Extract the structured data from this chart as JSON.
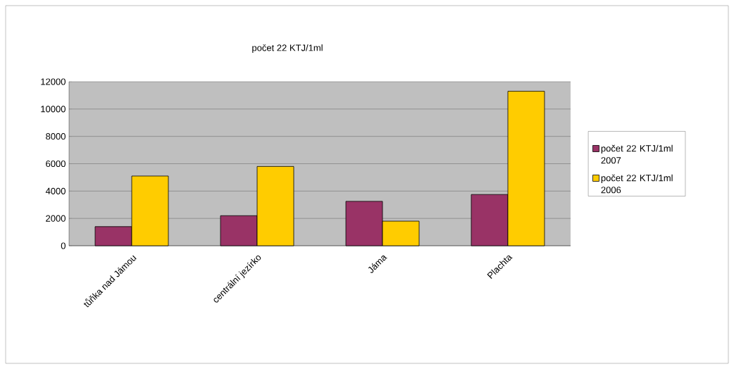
{
  "chart_data": {
    "type": "bar",
    "title": "počet 22 KTJ/1ml",
    "categories": [
      "tůňka nad Jámou",
      "centrální jezírko",
      "Jáma",
      "Plachta"
    ],
    "series": [
      {
        "name": "počet 22 KTJ/1ml 2007",
        "color": "#993366",
        "values": [
          1400,
          2200,
          3250,
          3750
        ]
      },
      {
        "name": "počet 22 KTJ/1ml 2006",
        "color": "#ffcc00",
        "values": [
          5100,
          5800,
          1800,
          11300
        ]
      }
    ],
    "ylim": [
      0,
      12000
    ],
    "yticks": [
      0,
      2000,
      4000,
      6000,
      8000,
      10000,
      12000
    ],
    "grid": "y",
    "legend": "right"
  }
}
